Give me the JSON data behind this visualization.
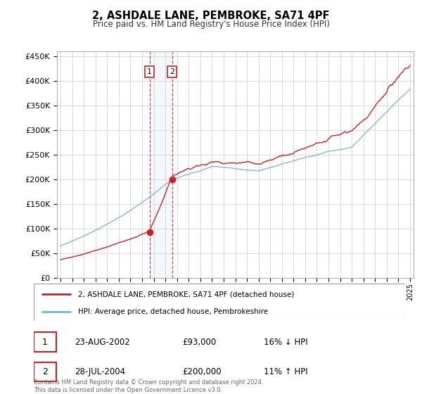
{
  "title": "2, ASHDALE LANE, PEMBROKE, SA71 4PF",
  "subtitle": "Price paid vs. HM Land Registry's House Price Index (HPI)",
  "ylim": [
    0,
    460000
  ],
  "yticks": [
    0,
    50000,
    100000,
    150000,
    200000,
    250000,
    300000,
    350000,
    400000,
    450000
  ],
  "ytick_labels": [
    "£0",
    "£50K",
    "£100K",
    "£150K",
    "£200K",
    "£250K",
    "£300K",
    "£350K",
    "£400K",
    "£450K"
  ],
  "background_color": "#ffffff",
  "grid_color": "#cccccc",
  "hpi_color": "#7ab0d4",
  "price_color": "#cc2222",
  "t1_year": 2002.639,
  "t2_year": 2004.581,
  "t1_price": 93000,
  "t2_price": 200000,
  "legend_label_price": "2, ASHDALE LANE, PEMBROKE, SA71 4PF (detached house)",
  "legend_label_hpi": "HPI: Average price, detached house, Pembrokeshire",
  "footnote": "Contains HM Land Registry data © Crown copyright and database right 2024.\nThis data is licensed under the Open Government Licence v3.0.",
  "table": [
    {
      "num": "1",
      "date": "23-AUG-2002",
      "price": "£93,000",
      "hpi": "16% ↓ HPI"
    },
    {
      "num": "2",
      "date": "28-JUL-2004",
      "price": "£200,000",
      "hpi": "11% ↑ HPI"
    }
  ]
}
